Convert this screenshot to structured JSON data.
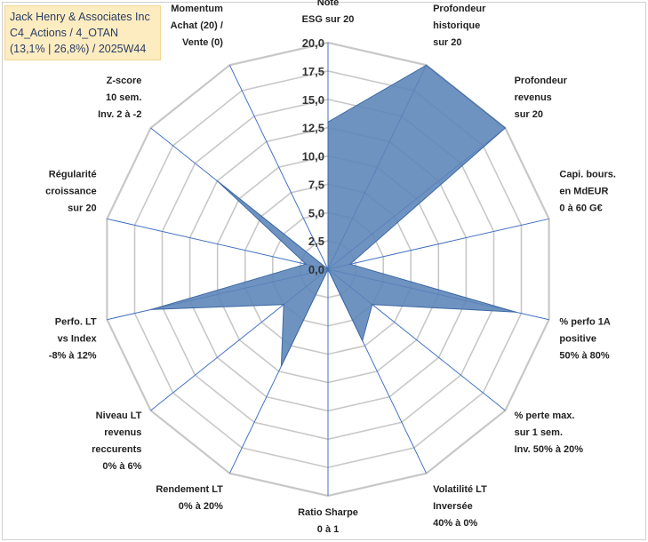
{
  "header": {
    "line1": "Jack Henry & Associates Inc",
    "line2": "C4_Actions / 4_OTAN",
    "line3": "(13,1% | 26,8%) / 2025W44"
  },
  "chart_data": {
    "type": "radar",
    "title": "Jack Henry & Associates Inc",
    "rmax": 20,
    "ticks": [
      "0,0",
      "2,5",
      "5,0",
      "7,5",
      "10,0",
      "12,5",
      "15,0",
      "17,5",
      "20,0"
    ],
    "axes": [
      {
        "label": [
          "Note",
          "ESG sur 20"
        ],
        "value": 13.0
      },
      {
        "label": [
          "Profondeur",
          "historique",
          "sur 20"
        ],
        "value": 20.0
      },
      {
        "label": [
          "Profondeur",
          "revenus",
          "sur 20"
        ],
        "value": 20.0
      },
      {
        "label": [
          "Capi. bours.",
          "en MdEUR",
          "0 à 60 G€"
        ],
        "value": 2.0
      },
      {
        "label": [
          "% perfo 1A",
          "positive",
          "50% à 80%"
        ],
        "value": 17.0
      },
      {
        "label": [
          "% perte max.",
          "sur 1 sem.",
          "Inv. 50% à 20%"
        ],
        "value": 5.0
      },
      {
        "label": [
          "Volatilité LT",
          "Inversée",
          "40% à 0%"
        ],
        "value": 7.0
      },
      {
        "label": [
          "Ratio Sharpe",
          "0 à 1"
        ],
        "value": 0.0
      },
      {
        "label": [
          "Rendement LT",
          "0% à 20%"
        ],
        "value": 9.5
      },
      {
        "label": [
          "Niveau LT",
          "revenus",
          "reccurents",
          "0% à 6%"
        ],
        "value": 5.0
      },
      {
        "label": [
          "Perfo. LT",
          "vs Index",
          "-8% à 12%"
        ],
        "value": 16.0
      },
      {
        "label": [
          "Régularité",
          "croissance",
          "sur 20"
        ],
        "value": 2.0
      },
      {
        "label": [
          "Z-score",
          "10 sem.",
          "Inv. 2 à -2"
        ],
        "value": 12.5
      },
      {
        "label": [
          "Momentum",
          "Achat (20) /",
          "Vente (0)"
        ],
        "value": 0.0
      }
    ],
    "series_color": "#5b84b8"
  }
}
